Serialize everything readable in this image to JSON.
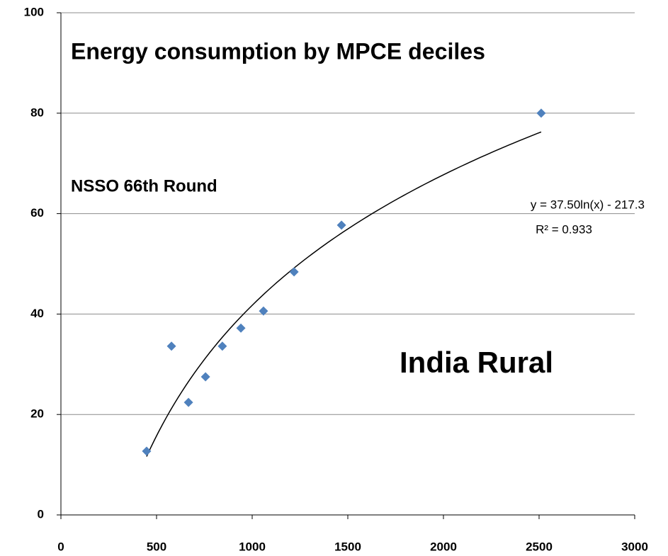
{
  "chart_data": {
    "type": "scatter",
    "title": "Energy consumption by MPCE deciles",
    "annotations": [
      "NSSO 66th Round",
      "India Rural"
    ],
    "x": [
      448,
      578,
      667,
      756,
      844,
      941,
      1059,
      1219,
      1467,
      2511
    ],
    "values": [
      12.7,
      33.6,
      22.4,
      27.5,
      33.6,
      37.2,
      40.6,
      48.4,
      57.7,
      80.0
    ],
    "color": "#4f81bd",
    "xlim": [
      0,
      3000
    ],
    "xticks": [
      0,
      500,
      1000,
      1500,
      2000,
      2500,
      3000
    ],
    "ylim": [
      0,
      100
    ],
    "yticks": [
      0,
      20,
      40,
      60,
      80,
      100
    ],
    "grid": true,
    "trendline": {
      "type": "log",
      "a": 37.5,
      "b": -217.3,
      "label": "y = 37.50ln(x) - 217.3",
      "r2_label": "R² = 0.933",
      "color": "#000000"
    }
  }
}
